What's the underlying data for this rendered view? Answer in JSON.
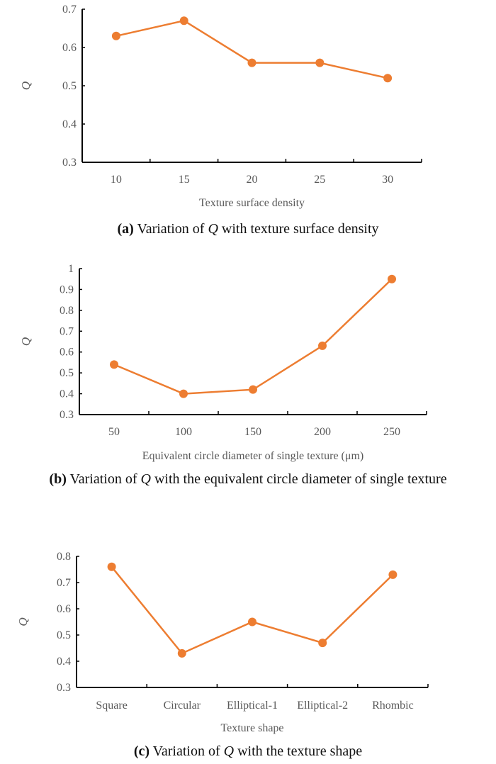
{
  "chart_data": [
    {
      "type": "line",
      "categories": [
        "10",
        "15",
        "20",
        "25",
        "30"
      ],
      "values": [
        0.63,
        0.67,
        0.56,
        0.56,
        0.52
      ],
      "xlabel": "Texture surface density",
      "ylabel": "Q",
      "ylim": [
        0.3,
        0.7
      ],
      "yticks": [
        "0.3",
        "0.4",
        "0.5",
        "0.6",
        "0.7"
      ],
      "grid": false,
      "color": "#ED7D31",
      "caption": {
        "label": "(a)",
        "prefix": "Variation of ",
        "symbol": "Q",
        "suffix": " with texture surface density"
      }
    },
    {
      "type": "line",
      "categories": [
        "50",
        "100",
        "150",
        "200",
        "250"
      ],
      "values": [
        0.54,
        0.4,
        0.42,
        0.63,
        0.95
      ],
      "xlabel": "Equivalent circle diameter of single texture (μm)",
      "ylabel": "Q",
      "ylim": [
        0.3,
        1.0
      ],
      "yticks": [
        "0.3",
        "0.4",
        "0.5",
        "0.6",
        "0.7",
        "0.8",
        "0.9",
        "1"
      ],
      "grid": false,
      "color": "#ED7D31",
      "caption": {
        "label": "(b)",
        "prefix": "Variation of ",
        "symbol": "Q",
        "suffix": " with the equivalent circle diameter of single texture"
      }
    },
    {
      "type": "line",
      "categories": [
        "Square",
        "Circular",
        "Elliptical-1",
        "Elliptical-2",
        "Rhombic"
      ],
      "values": [
        0.76,
        0.43,
        0.55,
        0.47,
        0.73
      ],
      "xlabel": "Texture shape",
      "ylabel": "Q",
      "ylim": [
        0.3,
        0.8
      ],
      "yticks": [
        "0.3",
        "0.4",
        "0.5",
        "0.6",
        "0.7",
        "0.8"
      ],
      "grid": false,
      "color": "#ED7D31",
      "caption": {
        "label": "(c)",
        "prefix": "Variation of ",
        "symbol": "Q",
        "suffix": " with the texture shape"
      }
    }
  ]
}
